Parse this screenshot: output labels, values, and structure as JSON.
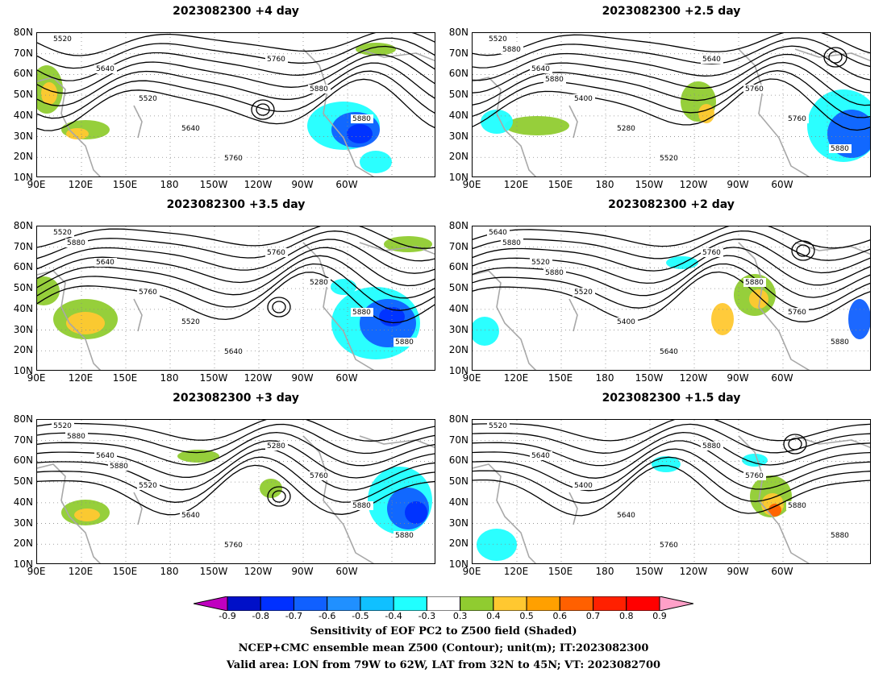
{
  "panels": [
    {
      "title": "2023082300  +4 day",
      "col": 0,
      "row": 0,
      "contour_labels": [
        "5520",
        "5640",
        "5520",
        "5640",
        "5760",
        "5760",
        "5880",
        "5880"
      ],
      "variant": 0
    },
    {
      "title": "2023082300  +2.5 day",
      "col": 1,
      "row": 0,
      "contour_labels": [
        "5520",
        "5640",
        "5400",
        "5280",
        "5520",
        "5640",
        "5760",
        "5760",
        "5880",
        "5880",
        "5880"
      ],
      "variant": 1
    },
    {
      "title": "2023082300  +3.5 day",
      "col": 0,
      "row": 1,
      "contour_labels": [
        "5520",
        "5640",
        "5760",
        "5520",
        "5640",
        "5760",
        "5280",
        "5880",
        "5880",
        "5880"
      ],
      "variant": 2
    },
    {
      "title": "2023082300  +2 day",
      "col": 1,
      "row": 1,
      "contour_labels": [
        "5640",
        "5520",
        "5520",
        "5400",
        "5640",
        "5760",
        "5880",
        "5760",
        "5880",
        "5880",
        "5880"
      ],
      "variant": 3
    },
    {
      "title": "2023082300  +3 day",
      "col": 0,
      "row": 2,
      "contour_labels": [
        "5520",
        "5640",
        "5520",
        "5640",
        "5760",
        "5280",
        "5760",
        "5880",
        "5880",
        "5880",
        "5880"
      ],
      "variant": 4
    },
    {
      "title": "2023082300  +1.5 day",
      "col": 1,
      "row": 2,
      "contour_labels": [
        "5520",
        "5640",
        "5400",
        "5640",
        "5760",
        "5880",
        "5760",
        "5880",
        "5880"
      ],
      "variant": 5
    }
  ],
  "lat_ticks": [
    "80N",
    "70N",
    "60N",
    "50N",
    "40N",
    "30N",
    "20N",
    "10N"
  ],
  "lon_ticks": [
    "90E",
    "120E",
    "150E",
    "180",
    "150W",
    "120W",
    "90W",
    "60W"
  ],
  "colorbar": {
    "ticks": [
      "-0.9",
      "-0.8",
      "-0.7",
      "-0.6",
      "-0.5",
      "-0.4",
      "-0.3",
      "0.3",
      "0.4",
      "0.5",
      "0.6",
      "0.7",
      "0.8",
      "0.9"
    ],
    "colors": [
      "#c000c0",
      "#0010c8",
      "#0030ff",
      "#1060ff",
      "#2090ff",
      "#10c0ff",
      "#20ffff",
      "#ffffff",
      "#90cc30",
      "#ffc830",
      "#ffa000",
      "#ff6000",
      "#ff2000",
      "#ff0000",
      "#ffa0c8"
    ]
  },
  "captions": [
    "Sensitivity of EOF PC2 to Z500 field (Shaded)",
    "NCEP+CMC ensemble mean Z500 (Contour); unit(m); IT:2023082300",
    "Valid area: LON from 79W to 62W, LAT from 32N to 45N; VT: 2023082700"
  ]
}
